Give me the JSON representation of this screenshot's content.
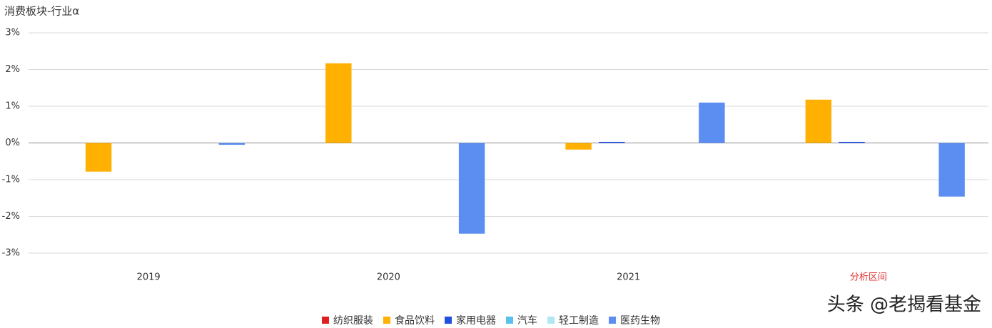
{
  "chart_data": {
    "type": "bar",
    "title": "消费板块-行业α",
    "categories": [
      "2019",
      "2020",
      "2021",
      "分析区间"
    ],
    "category_label_colors": [
      "#333333",
      "#333333",
      "#333333",
      "#e03030"
    ],
    "series": [
      {
        "name": "纺织服装",
        "color": "#e02020",
        "values": [
          0,
          0,
          0,
          0
        ]
      },
      {
        "name": "食品饮料",
        "color": "#ffb000",
        "values": [
          -0.78,
          2.17,
          -0.18,
          1.18
        ]
      },
      {
        "name": "家用电器",
        "color": "#2050e0",
        "values": [
          0,
          0,
          0.03,
          0.03
        ]
      },
      {
        "name": "汽车",
        "color": "#5bc0f0",
        "values": [
          0,
          0,
          0,
          0
        ]
      },
      {
        "name": "轻工制造",
        "color": "#b0e8f0",
        "values": [
          0,
          0,
          0,
          0
        ]
      },
      {
        "name": "医药生物",
        "color": "#5b8ef0",
        "values": [
          -0.05,
          -2.47,
          1.1,
          -1.46
        ]
      }
    ],
    "ylim": [
      -3,
      3
    ],
    "yticks": [
      {
        "value": -3,
        "label": "-3%"
      },
      {
        "value": -2,
        "label": "-2%"
      },
      {
        "value": -1,
        "label": "-1%"
      },
      {
        "value": 0,
        "label": "0%"
      },
      {
        "value": 1,
        "label": "1%"
      },
      {
        "value": 2,
        "label": "2%"
      },
      {
        "value": 3,
        "label": "3%"
      }
    ],
    "grid": true,
    "legend": "bottom"
  },
  "watermark": "头条 @老揭看基金"
}
